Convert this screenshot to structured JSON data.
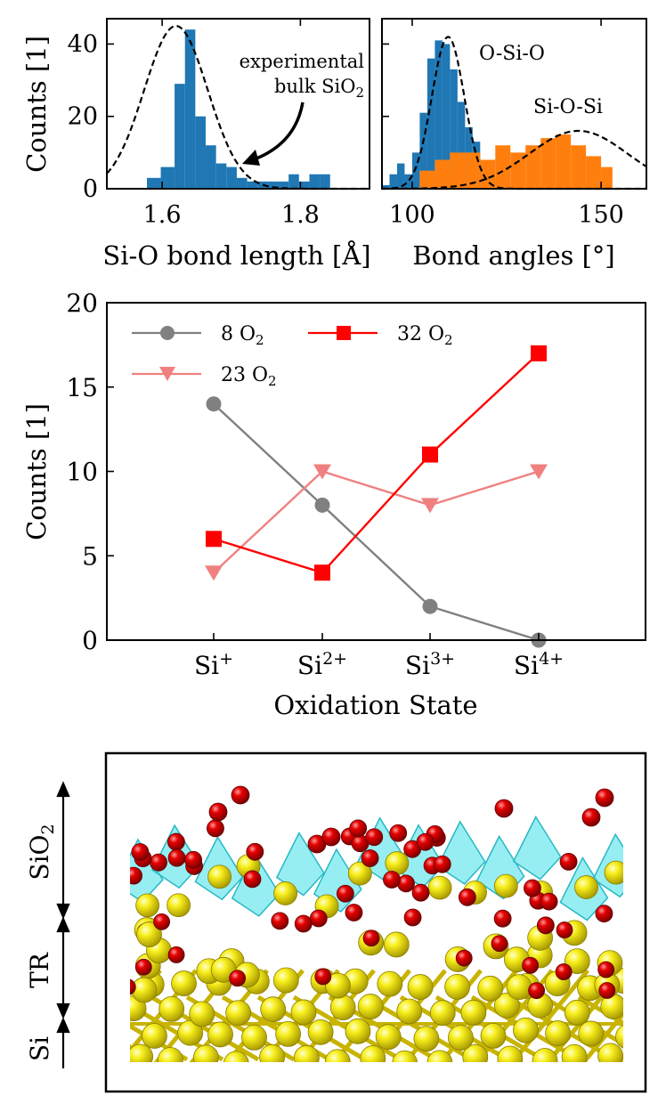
{
  "chart_data": [
    {
      "type": "bar",
      "id": "bond-length-histogram",
      "title": "",
      "xlabel": "Si-O bond length [Å]",
      "ylabel": "Counts [1]",
      "xlim": [
        1.52,
        1.9
      ],
      "ylim": [
        0,
        47
      ],
      "xticks": [
        1.6,
        1.8
      ],
      "xtick_labels": [
        "1.6",
        "1.8"
      ],
      "yticks": [
        0,
        20,
        40
      ],
      "ytick_labels": [
        "0",
        "20",
        "40"
      ],
      "annotation": {
        "line1": "experimental",
        "line2": "bulk SiO",
        "line2_sub": "2"
      },
      "series": [
        {
          "name": "Si-O bond length",
          "color": "#1f77b4",
          "bins": [
            {
              "x0": 1.578,
              "x1": 1.598,
              "count": 3
            },
            {
              "x0": 1.598,
              "x1": 1.618,
              "count": 6
            },
            {
              "x0": 1.618,
              "x1": 1.633,
              "count": 29
            },
            {
              "x0": 1.633,
              "x1": 1.648,
              "count": 44
            },
            {
              "x0": 1.648,
              "x1": 1.663,
              "count": 20
            },
            {
              "x0": 1.663,
              "x1": 1.678,
              "count": 12
            },
            {
              "x0": 1.678,
              "x1": 1.693,
              "count": 7
            },
            {
              "x0": 1.693,
              "x1": 1.708,
              "count": 6
            },
            {
              "x0": 1.708,
              "x1": 1.723,
              "count": 3
            },
            {
              "x0": 1.723,
              "x1": 1.738,
              "count": 2
            },
            {
              "x0": 1.738,
              "x1": 1.753,
              "count": 2
            },
            {
              "x0": 1.753,
              "x1": 1.768,
              "count": 2
            },
            {
              "x0": 1.768,
              "x1": 1.783,
              "count": 2
            },
            {
              "x0": 1.783,
              "x1": 1.798,
              "count": 4
            },
            {
              "x0": 1.798,
              "x1": 1.813,
              "count": 2
            },
            {
              "x0": 1.813,
              "x1": 1.828,
              "count": 4
            },
            {
              "x0": 1.828,
              "x1": 1.843,
              "count": 4
            }
          ]
        },
        {
          "name": "experimental bulk SiO2",
          "type": "line",
          "style": "dashed",
          "gaussian": {
            "mean": 1.62,
            "sigma": 0.046,
            "peak": 45
          }
        }
      ]
    },
    {
      "type": "bar",
      "id": "bond-angle-histogram",
      "title": "",
      "xlabel": "Bond angles [°]",
      "ylabel": "",
      "xlim": [
        92,
        162
      ],
      "ylim": [
        0,
        47
      ],
      "xticks": [
        100,
        150
      ],
      "xtick_labels": [
        "100",
        "150"
      ],
      "series": [
        {
          "name": "O-Si-O",
          "color": "#1f77b4",
          "bins": [
            {
              "x0": 92,
              "x1": 94,
              "count": 1
            },
            {
              "x0": 94,
              "x1": 96,
              "count": 4
            },
            {
              "x0": 96,
              "x1": 98,
              "count": 7
            },
            {
              "x0": 98,
              "x1": 100,
              "count": 4
            },
            {
              "x0": 100,
              "x1": 102,
              "count": 10
            },
            {
              "x0": 102,
              "x1": 104,
              "count": 21
            },
            {
              "x0": 104,
              "x1": 106,
              "count": 36
            },
            {
              "x0": 106,
              "x1": 108,
              "count": 41
            },
            {
              "x0": 108,
              "x1": 110,
              "count": 40
            },
            {
              "x0": 110,
              "x1": 112,
              "count": 33
            },
            {
              "x0": 112,
              "x1": 114,
              "count": 24
            },
            {
              "x0": 114,
              "x1": 116,
              "count": 17
            },
            {
              "x0": 116,
              "x1": 118,
              "count": 13
            },
            {
              "x0": 118,
              "x1": 120,
              "count": 6
            },
            {
              "x0": 120,
              "x1": 122,
              "count": 3
            }
          ]
        },
        {
          "name": "Si-O-Si",
          "color": "#ff7f0e",
          "bins": [
            {
              "x0": 102,
              "x1": 106,
              "count": 5
            },
            {
              "x0": 106,
              "x1": 110,
              "count": 8
            },
            {
              "x0": 110,
              "x1": 114,
              "count": 10
            },
            {
              "x0": 114,
              "x1": 118,
              "count": 10
            },
            {
              "x0": 118,
              "x1": 122,
              "count": 8
            },
            {
              "x0": 122,
              "x1": 126,
              "count": 12
            },
            {
              "x0": 126,
              "x1": 130,
              "count": 10
            },
            {
              "x0": 130,
              "x1": 134,
              "count": 12
            },
            {
              "x0": 134,
              "x1": 138,
              "count": 14
            },
            {
              "x0": 138,
              "x1": 142,
              "count": 15
            },
            {
              "x0": 142,
              "x1": 146,
              "count": 12
            },
            {
              "x0": 146,
              "x1": 150,
              "count": 9
            },
            {
              "x0": 150,
              "x1": 153,
              "count": 6
            }
          ]
        },
        {
          "name": "O-Si-O reference",
          "type": "line",
          "style": "dashed",
          "gaussian": {
            "mean": 109.5,
            "sigma": 4.3,
            "peak": 42
          }
        },
        {
          "name": "Si-O-Si reference",
          "type": "line",
          "style": "dashed",
          "gaussian": {
            "mean": 144,
            "sigma": 13,
            "peak": 16
          }
        }
      ],
      "labels": [
        {
          "text": "O-Si-O"
        },
        {
          "text": "Si-O-Si"
        }
      ]
    },
    {
      "type": "line",
      "id": "oxidation-state-chart",
      "title": "",
      "xlabel": "Oxidation State",
      "ylabel": "Counts [1]",
      "categories": [
        {
          "base": "Si",
          "sup": "+"
        },
        {
          "base": "Si",
          "sup": "2+"
        },
        {
          "base": "Si",
          "sup": "3+"
        },
        {
          "base": "Si",
          "sup": "4+"
        }
      ],
      "ylim": [
        0,
        20
      ],
      "yticks": [
        0,
        5,
        10,
        15,
        20
      ],
      "ytick_labels": [
        "0",
        "5",
        "10",
        "15",
        "20"
      ],
      "legend_position": "top-left",
      "series": [
        {
          "name": "8 O",
          "name_sub": "2",
          "marker": "circle",
          "color": "#808080",
          "values": [
            14,
            8,
            2,
            0
          ]
        },
        {
          "name": "32 O",
          "name_sub": "2",
          "marker": "square",
          "color": "#ff0000",
          "values": [
            6,
            4,
            11,
            17
          ]
        },
        {
          "name": "23 O",
          "name_sub": "2",
          "marker": "triangle-down",
          "color": "#f08080",
          "values": [
            4,
            10,
            8,
            10
          ]
        }
      ]
    }
  ],
  "structure_panel": {
    "region_labels": [
      {
        "base": "SiO",
        "sub": "2"
      },
      {
        "base": "TR",
        "sub": ""
      },
      {
        "base": "Si",
        "sub": ""
      }
    ],
    "colors": {
      "silicon": "#f5ea14",
      "oxygen": "#e30000",
      "tetrahedra": "#3fe0e8",
      "bond": "#c8b400"
    }
  }
}
